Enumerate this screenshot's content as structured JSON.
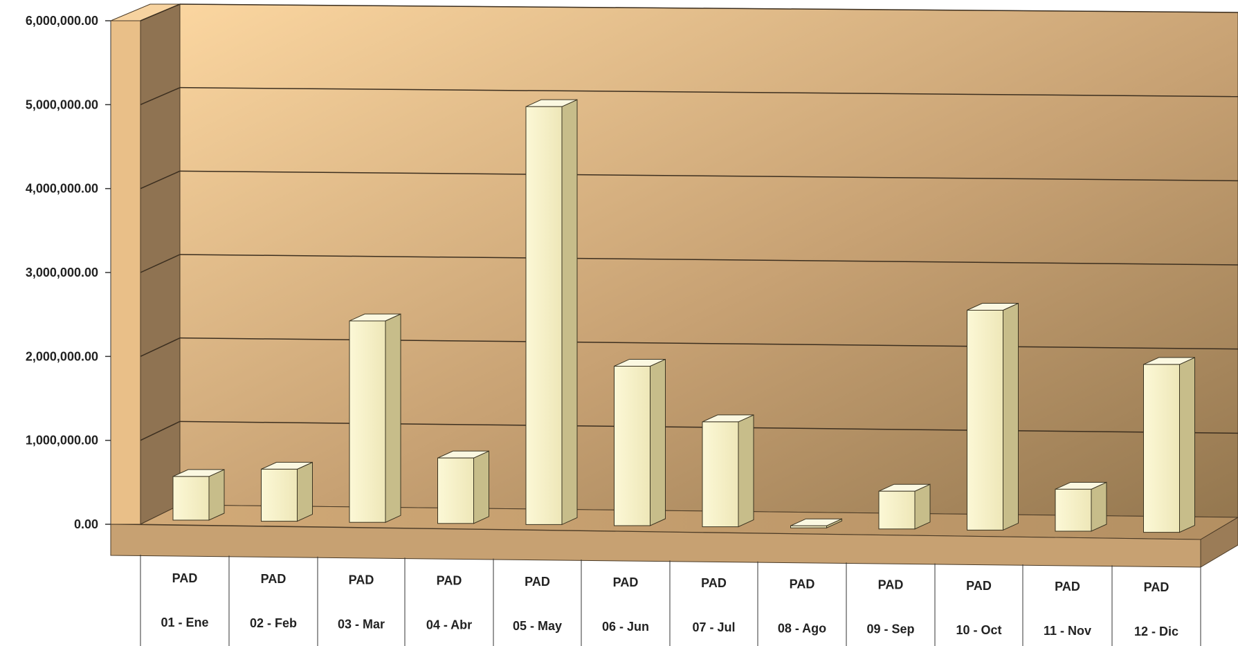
{
  "chart_data": {
    "type": "bar",
    "style": "3d-column",
    "title": "",
    "xlabel": "",
    "ylabel": "",
    "ylim": [
      0,
      6000000
    ],
    "y_ticks": [
      "0.00",
      "1,000,000.00",
      "2,000,000.00",
      "3,000,000.00",
      "4,000,000.00",
      "5,000,000.00",
      "6,000,000.00"
    ],
    "y_tick_values": [
      0,
      1000000,
      2000000,
      3000000,
      4000000,
      5000000,
      6000000
    ],
    "grid": true,
    "categories": [
      {
        "group": "PAD",
        "label": "01 - Ene"
      },
      {
        "group": "PAD",
        "label": "02 - Feb"
      },
      {
        "group": "PAD",
        "label": "03 - Mar"
      },
      {
        "group": "PAD",
        "label": "04 - Abr"
      },
      {
        "group": "PAD",
        "label": "05 - May"
      },
      {
        "group": "PAD",
        "label": "06 - Jun"
      },
      {
        "group": "PAD",
        "label": "07 - Jul"
      },
      {
        "group": "PAD",
        "label": "08 - Ago"
      },
      {
        "group": "PAD",
        "label": "09 - Sep"
      },
      {
        "group": "PAD",
        "label": "10 - Oct"
      },
      {
        "group": "PAD",
        "label": "11 - Nov"
      },
      {
        "group": "PAD",
        "label": "12 - Dic"
      }
    ],
    "values": [
      520000,
      620000,
      2400000,
      780000,
      4980000,
      1900000,
      1250000,
      20000,
      450000,
      2620000,
      500000,
      2000000
    ],
    "colors": {
      "bar_front": "#f5f0c8",
      "bar_side": "#c9c08e",
      "bar_top": "#fbf8e3",
      "wall_light": "#f6cf98",
      "wall_dark": "#9c7d57",
      "floor": "#c4a074",
      "side_wall": "#8e7252"
    }
  }
}
